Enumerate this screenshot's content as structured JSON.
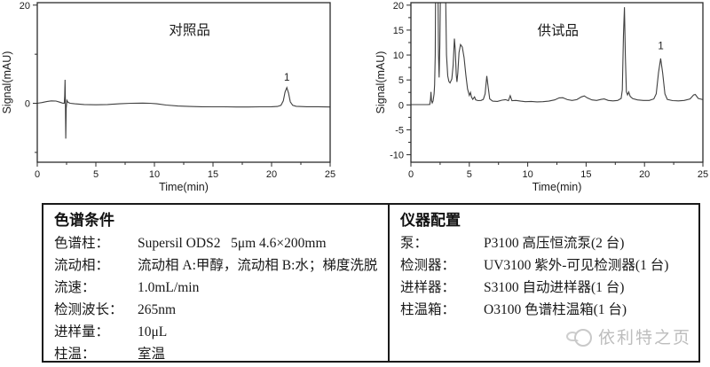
{
  "chart_data": [
    {
      "type": "line",
      "title": "",
      "annotation": "对照品",
      "annotation_pos": {
        "t": 13,
        "y": 14
      },
      "xlabel": "Time(min)",
      "ylabel": "Signal(mAU)",
      "xlim": [
        0,
        25
      ],
      "ylim": [
        -12,
        20.5
      ],
      "xticks": [
        0,
        5,
        10,
        15,
        20,
        25
      ],
      "xminorticks": [
        2.5,
        7.5,
        12.5,
        17.5,
        22.5
      ],
      "yticks": [
        {
          "value": 0,
          "label": "0"
        },
        {
          "value": 20,
          "label": "20"
        }
      ],
      "yminorticks": [
        -10,
        10
      ],
      "grid": false,
      "legend": "none",
      "line_color": "#3f3f3f",
      "peak_annotations": [
        {
          "label": "1",
          "t": 21.3,
          "y": 4.6
        }
      ],
      "series": [
        {
          "name": "reference-sample-trace",
          "points": [
            [
              0,
              0
            ],
            [
              0.4,
              0.15
            ],
            [
              0.8,
              0.35
            ],
            [
              1.2,
              0.5
            ],
            [
              1.6,
              0.45
            ],
            [
              1.9,
              0.25
            ],
            [
              2.15,
              0.05
            ],
            [
              2.3,
              0
            ],
            [
              2.34,
              1.5
            ],
            [
              2.37,
              4.8
            ],
            [
              2.4,
              0
            ],
            [
              2.43,
              -7.2
            ],
            [
              2.47,
              -1
            ],
            [
              2.53,
              0.6
            ],
            [
              2.62,
              0.2
            ],
            [
              2.8,
              0
            ],
            [
              3.2,
              -0.1
            ],
            [
              4,
              -0.25
            ],
            [
              5,
              -0.3
            ],
            [
              6,
              -0.25
            ],
            [
              7,
              -0.1
            ],
            [
              8,
              0
            ],
            [
              9,
              0.05
            ],
            [
              9.6,
              0
            ],
            [
              10.2,
              -0.1
            ],
            [
              11,
              -0.35
            ],
            [
              12,
              -0.55
            ],
            [
              13,
              -0.65
            ],
            [
              14,
              -0.7
            ],
            [
              15,
              -0.72
            ],
            [
              16,
              -0.72
            ],
            [
              17,
              -0.75
            ],
            [
              18,
              -0.75
            ],
            [
              19,
              -0.72
            ],
            [
              20,
              -0.7
            ],
            [
              20.5,
              -0.65
            ],
            [
              20.8,
              -0.4
            ],
            [
              21,
              0.5
            ],
            [
              21.15,
              2.3
            ],
            [
              21.3,
              3.2
            ],
            [
              21.45,
              2.1
            ],
            [
              21.6,
              0.3
            ],
            [
              21.8,
              -0.4
            ],
            [
              22.1,
              -0.6
            ],
            [
              23,
              -0.7
            ],
            [
              24,
              -0.7
            ],
            [
              25,
              -0.75
            ]
          ]
        }
      ]
    },
    {
      "type": "line",
      "title": "",
      "annotation": "供试品",
      "annotation_pos": {
        "t": 12.6,
        "y": 14
      },
      "xlabel": "Time(min)",
      "ylabel": "Signal(mAU)",
      "xlim": [
        0,
        25
      ],
      "ylim": [
        -11.5,
        20.5
      ],
      "xticks": [
        0,
        5,
        10,
        15,
        20,
        25
      ],
      "xminorticks": [
        2.5,
        7.5,
        12.5,
        17.5,
        22.5
      ],
      "yticks": [
        {
          "value": -10,
          "label": "-10"
        },
        {
          "value": -5,
          "label": "-5"
        },
        {
          "value": 0,
          "label": "0"
        },
        {
          "value": 5,
          "label": "5"
        },
        {
          "value": 10,
          "label": "10"
        },
        {
          "value": 15,
          "label": "15"
        },
        {
          "value": 20,
          "label": "20"
        }
      ],
      "yminorticks": [
        -7.5,
        -2.5,
        2.5,
        7.5,
        12.5,
        17.5
      ],
      "grid": false,
      "legend": "none",
      "line_color": "#3f3f3f",
      "peak_annotations": [
        {
          "label": "1",
          "t": 21.4,
          "y": 11.2
        }
      ],
      "series": [
        {
          "name": "test-sample-trace",
          "points": [
            [
              0,
              0.05
            ],
            [
              0.5,
              0.05
            ],
            [
              1,
              0.05
            ],
            [
              1.4,
              0.05
            ],
            [
              1.62,
              0.1
            ],
            [
              1.68,
              1.2
            ],
            [
              1.72,
              2.6
            ],
            [
              1.76,
              0.9
            ],
            [
              1.82,
              0.4
            ],
            [
              1.9,
              0.8
            ],
            [
              1.98,
              2.2
            ],
            [
              2.03,
              4
            ],
            [
              2.08,
              10
            ],
            [
              2.12,
              25
            ],
            [
              2.2,
              28
            ],
            [
              2.3,
              28
            ],
            [
              2.36,
              10
            ],
            [
              2.42,
              5.5
            ],
            [
              2.48,
              12
            ],
            [
              2.55,
              28
            ],
            [
              2.8,
              28
            ],
            [
              2.95,
              26
            ],
            [
              3.05,
              10
            ],
            [
              3.15,
              5.8
            ],
            [
              3.25,
              4.7
            ],
            [
              3.35,
              4.4
            ],
            [
              3.5,
              5.2
            ],
            [
              3.62,
              8
            ],
            [
              3.72,
              13.3
            ],
            [
              3.8,
              11
            ],
            [
              3.88,
              6
            ],
            [
              3.94,
              4.6
            ],
            [
              4.02,
              6.5
            ],
            [
              4.12,
              10.5
            ],
            [
              4.25,
              12.1
            ],
            [
              4.4,
              11.6
            ],
            [
              4.55,
              9.5
            ],
            [
              4.7,
              6
            ],
            [
              4.85,
              3.2
            ],
            [
              5,
              1.9
            ],
            [
              5.1,
              2.5
            ],
            [
              5.18,
              1.6
            ],
            [
              5.3,
              1.1
            ],
            [
              5.45,
              1.6
            ],
            [
              5.55,
              1
            ],
            [
              5.75,
              0.85
            ],
            [
              6,
              0.9
            ],
            [
              6.2,
              1.1
            ],
            [
              6.35,
              2.2
            ],
            [
              6.5,
              5.8
            ],
            [
              6.62,
              3.5
            ],
            [
              6.75,
              1.2
            ],
            [
              7,
              0.75
            ],
            [
              7.4,
              0.7
            ],
            [
              7.8,
              0.95
            ],
            [
              8.1,
              1.05
            ],
            [
              8.35,
              0.85
            ],
            [
              8.5,
              1.85
            ],
            [
              8.65,
              0.85
            ],
            [
              9,
              0.9
            ],
            [
              9.4,
              0.75
            ],
            [
              9.8,
              0.65
            ],
            [
              10.3,
              0.7
            ],
            [
              10.8,
              0.6
            ],
            [
              11.3,
              0.65
            ],
            [
              11.8,
              0.75
            ],
            [
              12.3,
              1
            ],
            [
              12.7,
              1.4
            ],
            [
              13,
              1.45
            ],
            [
              13.4,
              1.05
            ],
            [
              13.8,
              0.9
            ],
            [
              14.2,
              1.05
            ],
            [
              14.6,
              1.6
            ],
            [
              14.85,
              1.8
            ],
            [
              15.1,
              1.4
            ],
            [
              15.5,
              1
            ],
            [
              15.9,
              0.9
            ],
            [
              16.3,
              1.1
            ],
            [
              16.55,
              1.2
            ],
            [
              16.9,
              0.9
            ],
            [
              17.3,
              0.8
            ],
            [
              17.7,
              0.9
            ],
            [
              18,
              1.3
            ],
            [
              18.1,
              3
            ],
            [
              18.2,
              14
            ],
            [
              18.28,
              19.6
            ],
            [
              18.36,
              10
            ],
            [
              18.45,
              2.6
            ],
            [
              18.55,
              2
            ],
            [
              18.65,
              2.6
            ],
            [
              18.78,
              1.7
            ],
            [
              19,
              1.25
            ],
            [
              19.4,
              1
            ],
            [
              19.9,
              0.9
            ],
            [
              20.4,
              0.9
            ],
            [
              20.8,
              1.2
            ],
            [
              21,
              2.2
            ],
            [
              21.2,
              6.5
            ],
            [
              21.38,
              9.3
            ],
            [
              21.55,
              6.5
            ],
            [
              21.75,
              2.2
            ],
            [
              21.95,
              1.1
            ],
            [
              22.4,
              0.85
            ],
            [
              22.9,
              0.8
            ],
            [
              23.4,
              0.9
            ],
            [
              23.9,
              1.2
            ],
            [
              24.2,
              2
            ],
            [
              24.35,
              2.1
            ],
            [
              24.6,
              1.3
            ],
            [
              25,
              1.05
            ]
          ]
        }
      ]
    }
  ],
  "table": {
    "left": {
      "header": "色谱条件",
      "rows": [
        {
          "label": "色谱柱：",
          "value": "Supersil ODS2   5μm 4.6×200mm"
        },
        {
          "label": "流动相：",
          "value": "流动相 A:甲醇，流动相 B:水；梯度洗脱"
        },
        {
          "label": "流速：",
          "value": "1.0mL/min"
        },
        {
          "label": "检测波长：",
          "value": "265nm"
        },
        {
          "label": "进样量：",
          "value": "10μL"
        },
        {
          "label": "柱温：",
          "value": "室温"
        }
      ]
    },
    "right": {
      "header": "仪器配置",
      "rows": [
        {
          "label": "泵：",
          "value": "P3100 高压恒流泵(2 台)"
        },
        {
          "label": "检测器：",
          "value": "UV3100 紫外-可见检测器(1 台)"
        },
        {
          "label": "进样器：",
          "value": "S3100 自动进样器(1 台)"
        },
        {
          "label": "柱温箱：",
          "value": "O3100 色谱柱温箱(1 台)"
        }
      ]
    }
  },
  "watermark": {
    "text": "依利特之页"
  }
}
